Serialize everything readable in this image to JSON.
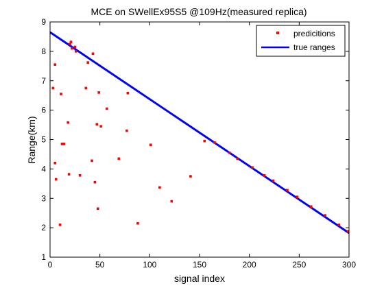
{
  "chart_data": {
    "type": "scatter",
    "title": "MCE on SWellEx95S5 @109Hz(measured replica)",
    "xlabel": "signal index",
    "ylabel": "Range(km)",
    "xlim": [
      0,
      300
    ],
    "ylim": [
      1,
      9
    ],
    "xticks": [
      "0",
      "50",
      "100",
      "150",
      "200",
      "250",
      "300"
    ],
    "yticks": [
      "1",
      "2",
      "3",
      "4",
      "5",
      "6",
      "7",
      "8",
      "9"
    ],
    "grid": false,
    "legend_position": "top-right",
    "colors": {
      "predictions": "#ff0000",
      "true_ranges": "#0000ff"
    },
    "series": [
      {
        "name": "predicitions",
        "style": "markers",
        "points": [
          [
            3,
            6.75
          ],
          [
            5,
            4.2
          ],
          [
            5,
            7.55
          ],
          [
            6,
            3.65
          ],
          [
            10,
            2.1
          ],
          [
            11,
            6.55
          ],
          [
            12,
            4.85
          ],
          [
            14,
            4.85
          ],
          [
            18,
            5.58
          ],
          [
            19,
            3.82
          ],
          [
            20,
            8.25
          ],
          [
            21,
            8.32
          ],
          [
            22,
            8.1
          ],
          [
            25,
            8.15
          ],
          [
            26,
            8.0
          ],
          [
            30,
            3.78
          ],
          [
            36,
            6.75
          ],
          [
            38,
            7.62
          ],
          [
            42,
            4.28
          ],
          [
            43,
            7.92
          ],
          [
            45,
            3.55
          ],
          [
            47,
            5.52
          ],
          [
            48,
            2.65
          ],
          [
            49,
            6.6
          ],
          [
            51,
            5.45
          ],
          [
            57,
            6.05
          ],
          [
            69,
            4.35
          ],
          [
            77,
            5.3
          ],
          [
            78,
            6.58
          ],
          [
            88,
            2.15
          ],
          [
            101,
            4.82
          ],
          [
            110,
            3.37
          ],
          [
            122,
            2.9
          ],
          [
            141,
            3.75
          ],
          [
            155,
            4.95
          ],
          [
            165,
            4.9
          ],
          [
            180,
            4.55
          ],
          [
            188,
            4.35
          ],
          [
            203,
            4.05
          ],
          [
            215,
            3.78
          ],
          [
            224,
            3.6
          ],
          [
            238,
            3.28
          ],
          [
            248,
            3.05
          ],
          [
            262,
            2.72
          ],
          [
            276,
            2.42
          ],
          [
            290,
            2.1
          ],
          [
            299,
            1.88
          ]
        ]
      },
      {
        "name": "true ranges",
        "style": "line",
        "x": [
          0,
          300
        ],
        "y": [
          8.65,
          1.82
        ]
      }
    ]
  }
}
